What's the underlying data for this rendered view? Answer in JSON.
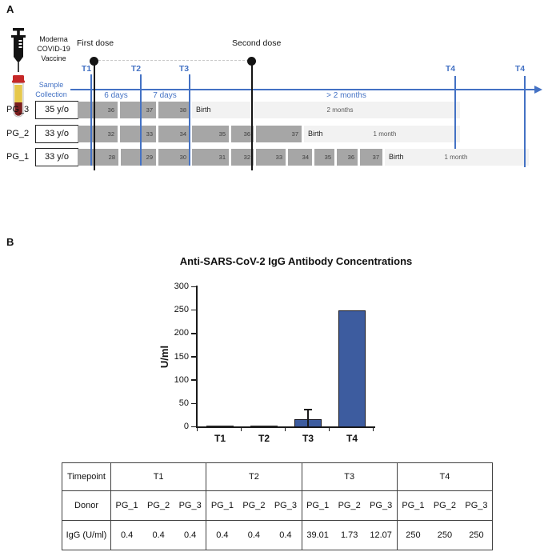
{
  "colors": {
    "accent_blue": "#4472C4",
    "bar_blue": "#3D5C9F",
    "bar_border": "#15151f",
    "block_gray": "#A6A6A6",
    "light_gray": "#F2F2F2"
  },
  "panelA": {
    "label": "A",
    "icons": {
      "vaccine": "syringe-icon",
      "sample": "blood-tube-icon"
    },
    "vaccine_label": "Moderna COVID-19 Vaccine",
    "sample_label": "Sample Collection",
    "first_dose_label": "First dose",
    "second_dose_label": "Second dose",
    "t_labels": [
      "T1",
      "T2",
      "T3",
      "T4",
      "T4"
    ],
    "intervals": [
      "6 days",
      "7 days",
      "> 2 months"
    ],
    "rows": [
      {
        "id": "PG_3",
        "age": "35 y/o",
        "weeks": [
          36,
          37,
          38
        ],
        "birth": "Birth",
        "post": "2 months"
      },
      {
        "id": "PG_2",
        "age": "33 y/o",
        "weeks": [
          32,
          33,
          34,
          35,
          36,
          37
        ],
        "birth": "Birth",
        "post": "1 month"
      },
      {
        "id": "PG_1",
        "age": "33 y/o",
        "weeks": [
          28,
          29,
          30,
          31,
          32,
          33,
          34,
          35,
          36,
          37
        ],
        "birth": "Birth",
        "post": "1 month"
      }
    ]
  },
  "panelB": {
    "label": "B",
    "chart_data": {
      "type": "bar",
      "title": "Anti-SARS-CoV-2 IgG Antibody Concentrations",
      "categories": [
        "T1",
        "T2",
        "T3",
        "T4"
      ],
      "values": [
        0.4,
        0.4,
        17.6,
        250
      ],
      "errors_plus": [
        0,
        0,
        19.4,
        0
      ],
      "ylabel": "U/ml",
      "ylim": [
        0,
        300
      ],
      "yticks": [
        0,
        50,
        100,
        150,
        200,
        250,
        300
      ],
      "grid": false,
      "legend": "none",
      "bar_color": "#3D5C9F"
    },
    "table": {
      "row_headers": [
        "Timepoint",
        "Donor",
        "IgG (U/ml)"
      ],
      "groups": [
        {
          "timepoint": "T1",
          "donors": [
            "PG_1",
            "PG_2",
            "PG_3"
          ],
          "values": [
            "0.4",
            "0.4",
            "0.4"
          ]
        },
        {
          "timepoint": "T2",
          "donors": [
            "PG_1",
            "PG_2",
            "PG_3"
          ],
          "values": [
            "0.4",
            "0.4",
            "0.4"
          ]
        },
        {
          "timepoint": "T3",
          "donors": [
            "PG_1",
            "PG_2",
            "PG_3"
          ],
          "values": [
            "39.01",
            "1.73",
            "12.07"
          ]
        },
        {
          "timepoint": "T4",
          "donors": [
            "PG_1",
            "PG_2",
            "PG_3"
          ],
          "values": [
            "250",
            "250",
            "250"
          ]
        }
      ]
    }
  }
}
